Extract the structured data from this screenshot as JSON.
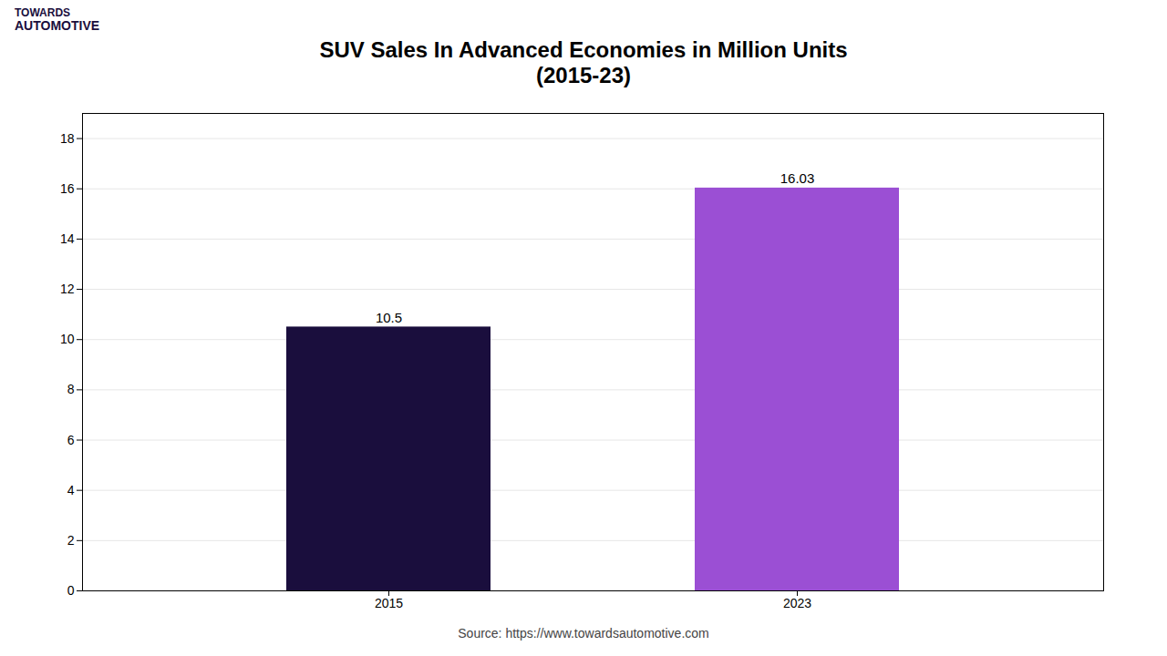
{
  "chart_data": {
    "type": "bar",
    "title": "SUV Sales In Advanced Economies in Million Units\n(2015-23)",
    "categories": [
      "2015",
      "2023"
    ],
    "values": [
      10.5,
      16.03
    ],
    "colors": [
      "#1a0e3d",
      "#9b4fd4"
    ],
    "ylim": [
      0,
      19
    ],
    "yticks": [
      0,
      2,
      4,
      6,
      8,
      10,
      12,
      14,
      16,
      18
    ],
    "grid": true,
    "data_labels": true,
    "annotations": [
      "TOWARDS",
      "AUTOMOTIVE",
      "Source: https://www.towardsautomotive.com"
    ]
  }
}
